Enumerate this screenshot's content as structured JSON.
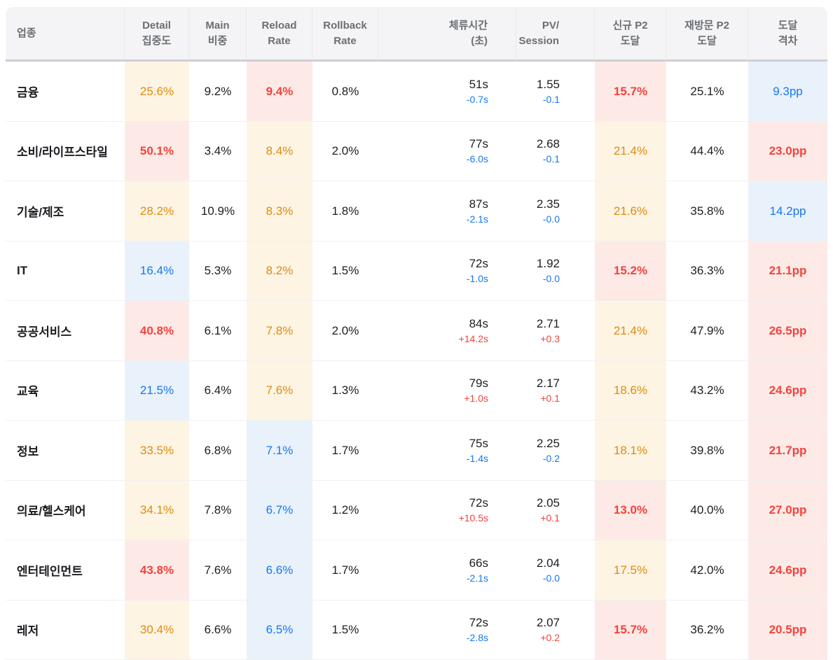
{
  "colors": {
    "amber_text": "#e08b0b",
    "amber_bg": "#fdf4e4",
    "red_text": "#f5423c",
    "red_bg": "#fdeae7",
    "blue_text": "#1677f0",
    "blue_bg": "#e9f1fb",
    "plain_text": "#1b1d21",
    "header_text": "#6a6e74",
    "header_bg": "#f4f4f6"
  },
  "chart_data": {
    "type": "table",
    "columns": [
      {
        "id": "industry",
        "line1": "업종",
        "line2": ""
      },
      {
        "id": "detail-focus",
        "line1": "Detail",
        "line2": "집중도"
      },
      {
        "id": "main-share",
        "line1": "Main",
        "line2": "비중"
      },
      {
        "id": "reload-rate",
        "line1": "Reload",
        "line2": "Rate"
      },
      {
        "id": "rollback-rate",
        "line1": "Rollback",
        "line2": "Rate"
      },
      {
        "id": "dwell-time",
        "line1": "체류시간",
        "line2": "(초)"
      },
      {
        "id": "pv-session",
        "line1": "PV/",
        "line2": "Session"
      },
      {
        "id": "new-p2-reach",
        "line1": "신규 P2",
        "line2": "도달"
      },
      {
        "id": "revisit-p2-reach",
        "line1": "재방문 P2",
        "line2": "도달"
      },
      {
        "id": "reach-gap",
        "line1": "도달",
        "line2": "격차"
      }
    ],
    "rows": [
      {
        "industry": "금융",
        "cells": [
          {
            "text": "25.6%",
            "tone": "amber"
          },
          {
            "text": "9.2%",
            "tone": "plain"
          },
          {
            "text": "9.4%",
            "tone": "red"
          },
          {
            "text": "0.8%",
            "tone": "plain"
          },
          {
            "text": "51s",
            "tone": "plain",
            "delta": "-0.7s",
            "delta_tone": "neg"
          },
          {
            "text": "1.55",
            "tone": "plain",
            "delta": "-0.1",
            "delta_tone": "neg"
          },
          {
            "text": "15.7%",
            "tone": "red"
          },
          {
            "text": "25.1%",
            "tone": "plain"
          },
          {
            "text": "9.3pp",
            "tone": "blue"
          }
        ]
      },
      {
        "industry": "소비/라이프스타일",
        "cells": [
          {
            "text": "50.1%",
            "tone": "red"
          },
          {
            "text": "3.4%",
            "tone": "plain"
          },
          {
            "text": "8.4%",
            "tone": "amber"
          },
          {
            "text": "2.0%",
            "tone": "plain"
          },
          {
            "text": "77s",
            "tone": "plain",
            "delta": "-6.0s",
            "delta_tone": "neg"
          },
          {
            "text": "2.68",
            "tone": "plain",
            "delta": "-0.1",
            "delta_tone": "neg"
          },
          {
            "text": "21.4%",
            "tone": "amber"
          },
          {
            "text": "44.4%",
            "tone": "plain"
          },
          {
            "text": "23.0pp",
            "tone": "red"
          }
        ]
      },
      {
        "industry": "기술/제조",
        "cells": [
          {
            "text": "28.2%",
            "tone": "amber"
          },
          {
            "text": "10.9%",
            "tone": "plain"
          },
          {
            "text": "8.3%",
            "tone": "amber"
          },
          {
            "text": "1.8%",
            "tone": "plain"
          },
          {
            "text": "87s",
            "tone": "plain",
            "delta": "-2.1s",
            "delta_tone": "neg"
          },
          {
            "text": "2.35",
            "tone": "plain",
            "delta": "-0.0",
            "delta_tone": "neg"
          },
          {
            "text": "21.6%",
            "tone": "amber"
          },
          {
            "text": "35.8%",
            "tone": "plain"
          },
          {
            "text": "14.2pp",
            "tone": "blue"
          }
        ]
      },
      {
        "industry": "IT",
        "cells": [
          {
            "text": "16.4%",
            "tone": "blue"
          },
          {
            "text": "5.3%",
            "tone": "plain"
          },
          {
            "text": "8.2%",
            "tone": "amber"
          },
          {
            "text": "1.5%",
            "tone": "plain"
          },
          {
            "text": "72s",
            "tone": "plain",
            "delta": "-1.0s",
            "delta_tone": "neg"
          },
          {
            "text": "1.92",
            "tone": "plain",
            "delta": "-0.0",
            "delta_tone": "neg"
          },
          {
            "text": "15.2%",
            "tone": "red"
          },
          {
            "text": "36.3%",
            "tone": "plain"
          },
          {
            "text": "21.1pp",
            "tone": "red"
          }
        ]
      },
      {
        "industry": "공공서비스",
        "cells": [
          {
            "text": "40.8%",
            "tone": "red"
          },
          {
            "text": "6.1%",
            "tone": "plain"
          },
          {
            "text": "7.8%",
            "tone": "amber"
          },
          {
            "text": "2.0%",
            "tone": "plain"
          },
          {
            "text": "84s",
            "tone": "plain",
            "delta": "+14.2s",
            "delta_tone": "pos"
          },
          {
            "text": "2.71",
            "tone": "plain",
            "delta": "+0.3",
            "delta_tone": "pos"
          },
          {
            "text": "21.4%",
            "tone": "amber"
          },
          {
            "text": "47.9%",
            "tone": "plain"
          },
          {
            "text": "26.5pp",
            "tone": "red"
          }
        ]
      },
      {
        "industry": "교육",
        "cells": [
          {
            "text": "21.5%",
            "tone": "blue"
          },
          {
            "text": "6.4%",
            "tone": "plain"
          },
          {
            "text": "7.6%",
            "tone": "amber"
          },
          {
            "text": "1.3%",
            "tone": "plain"
          },
          {
            "text": "79s",
            "tone": "plain",
            "delta": "+1.0s",
            "delta_tone": "pos"
          },
          {
            "text": "2.17",
            "tone": "plain",
            "delta": "+0.1",
            "delta_tone": "pos"
          },
          {
            "text": "18.6%",
            "tone": "amber"
          },
          {
            "text": "43.2%",
            "tone": "plain"
          },
          {
            "text": "24.6pp",
            "tone": "red"
          }
        ]
      },
      {
        "industry": "정보",
        "cells": [
          {
            "text": "33.5%",
            "tone": "amber"
          },
          {
            "text": "6.8%",
            "tone": "plain"
          },
          {
            "text": "7.1%",
            "tone": "blue"
          },
          {
            "text": "1.7%",
            "tone": "plain"
          },
          {
            "text": "75s",
            "tone": "plain",
            "delta": "-1.4s",
            "delta_tone": "neg"
          },
          {
            "text": "2.25",
            "tone": "plain",
            "delta": "-0.2",
            "delta_tone": "neg"
          },
          {
            "text": "18.1%",
            "tone": "amber"
          },
          {
            "text": "39.8%",
            "tone": "plain"
          },
          {
            "text": "21.7pp",
            "tone": "red"
          }
        ]
      },
      {
        "industry": "의료/헬스케어",
        "cells": [
          {
            "text": "34.1%",
            "tone": "amber"
          },
          {
            "text": "7.8%",
            "tone": "plain"
          },
          {
            "text": "6.7%",
            "tone": "blue"
          },
          {
            "text": "1.2%",
            "tone": "plain"
          },
          {
            "text": "72s",
            "tone": "plain",
            "delta": "+10.5s",
            "delta_tone": "pos"
          },
          {
            "text": "2.05",
            "tone": "plain",
            "delta": "+0.1",
            "delta_tone": "pos"
          },
          {
            "text": "13.0%",
            "tone": "red"
          },
          {
            "text": "40.0%",
            "tone": "plain"
          },
          {
            "text": "27.0pp",
            "tone": "red"
          }
        ]
      },
      {
        "industry": "엔터테인먼트",
        "cells": [
          {
            "text": "43.8%",
            "tone": "red"
          },
          {
            "text": "7.6%",
            "tone": "plain"
          },
          {
            "text": "6.6%",
            "tone": "blue"
          },
          {
            "text": "1.7%",
            "tone": "plain"
          },
          {
            "text": "66s",
            "tone": "plain",
            "delta": "-2.1s",
            "delta_tone": "neg"
          },
          {
            "text": "2.04",
            "tone": "plain",
            "delta": "-0.0",
            "delta_tone": "neg"
          },
          {
            "text": "17.5%",
            "tone": "amber"
          },
          {
            "text": "42.0%",
            "tone": "plain"
          },
          {
            "text": "24.6pp",
            "tone": "red"
          }
        ]
      },
      {
        "industry": "레저",
        "cells": [
          {
            "text": "30.4%",
            "tone": "amber"
          },
          {
            "text": "6.6%",
            "tone": "plain"
          },
          {
            "text": "6.5%",
            "tone": "blue"
          },
          {
            "text": "1.5%",
            "tone": "plain"
          },
          {
            "text": "72s",
            "tone": "plain",
            "delta": "-2.8s",
            "delta_tone": "neg"
          },
          {
            "text": "2.07",
            "tone": "plain",
            "delta": "+0.2",
            "delta_tone": "pos"
          },
          {
            "text": "15.7%",
            "tone": "red"
          },
          {
            "text": "36.2%",
            "tone": "plain"
          },
          {
            "text": "20.5pp",
            "tone": "red"
          }
        ]
      }
    ]
  }
}
